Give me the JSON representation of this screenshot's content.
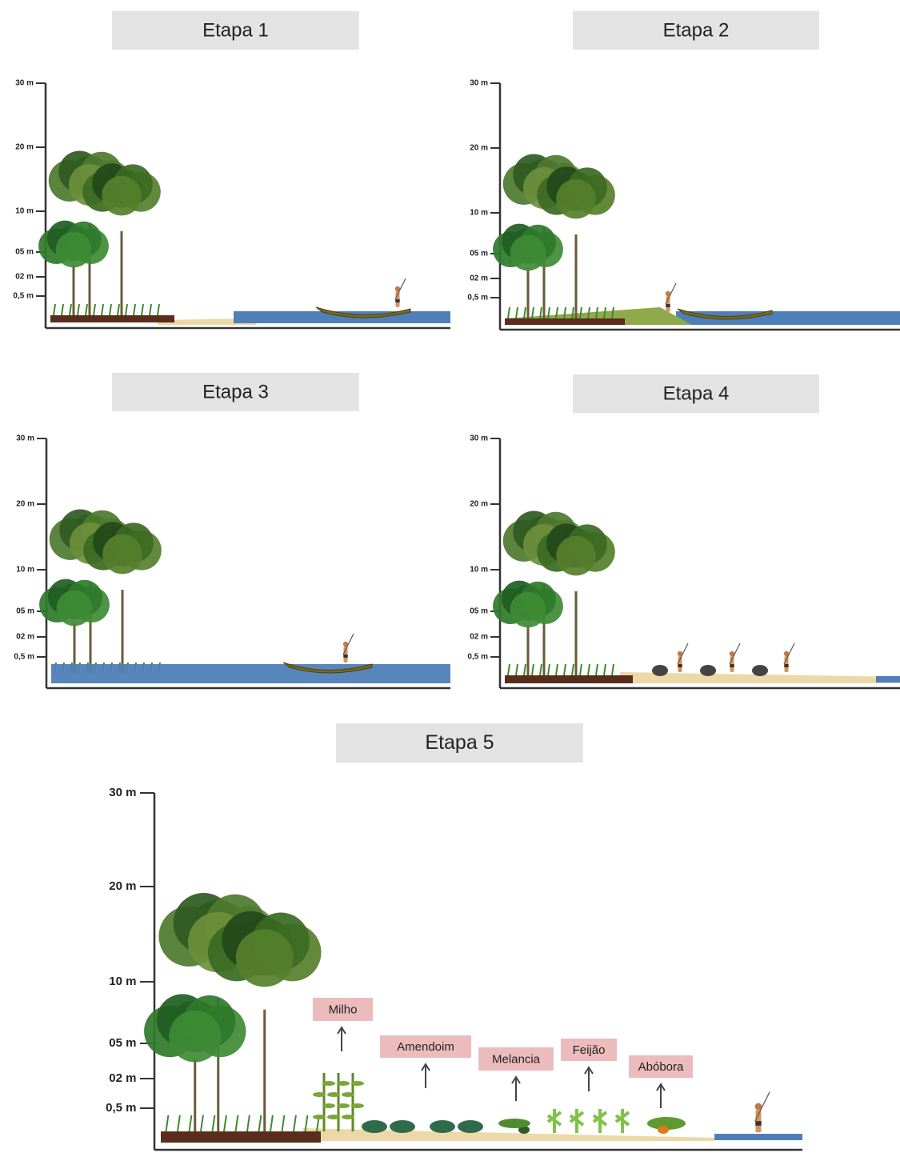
{
  "panels": [
    {
      "title": "Etapa 1",
      "axis_labels": [
        "30 m",
        "20 m",
        "10 m",
        "05 m",
        "02 m",
        "0,5 m"
      ]
    },
    {
      "title": "Etapa 2",
      "axis_labels": [
        "30 m",
        "20 m",
        "10 m",
        "05 m",
        "02 m",
        "0,5 m"
      ]
    },
    {
      "title": "Etapa 3",
      "axis_labels": [
        "30 m",
        "20 m",
        "10 m",
        "05 m",
        "02 m",
        "0,5 m"
      ]
    },
    {
      "title": "Etapa 4",
      "axis_labels": [
        "30 m",
        "20 m",
        "10 m",
        "05 m",
        "02 m",
        "0,5 m"
      ]
    },
    {
      "title": "Etapa 5",
      "axis_labels": [
        "30 m",
        "20 m",
        "10 m",
        "05 m",
        "02 m",
        "0,5 m"
      ]
    }
  ],
  "crops": [
    "Milho",
    "Amendoim",
    "Melancia",
    "Feijão",
    "Abóbora"
  ]
}
